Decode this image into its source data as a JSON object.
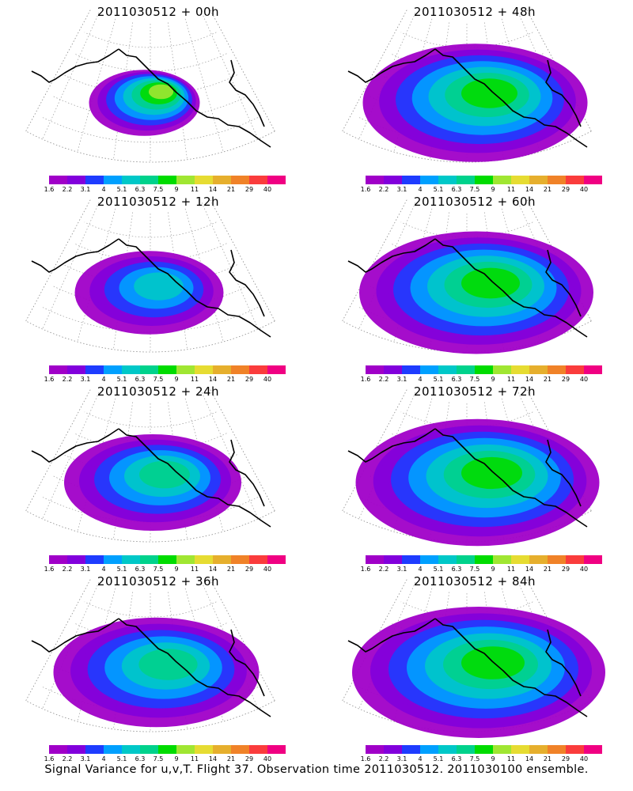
{
  "panels": [
    {
      "title": "2011030512 + 00h",
      "spread": 0.25,
      "max_level": 7
    },
    {
      "title": "2011030512 + 48h",
      "spread": 0.85,
      "max_level": 6
    },
    {
      "title": "2011030512 + 12h",
      "spread": 0.45,
      "max_level": 4
    },
    {
      "title": "2011030512 + 60h",
      "spread": 0.9,
      "max_level": 6
    },
    {
      "title": "2011030512 + 24h",
      "spread": 0.6,
      "max_level": 5
    },
    {
      "title": "2011030512 + 72h",
      "spread": 0.95,
      "max_level": 6
    },
    {
      "title": "2011030512 + 36h",
      "spread": 0.75,
      "max_level": 5
    },
    {
      "title": "2011030512 + 84h",
      "spread": 1.0,
      "max_level": 6
    }
  ],
  "colorbar": {
    "labels": [
      "1.6",
      "2.2",
      "3.1",
      "4",
      "5.1",
      "6.3",
      "7.5",
      "9",
      "11",
      "14",
      "21",
      "29",
      "40"
    ],
    "colors": [
      "#a000c8",
      "#8200dc",
      "#1e3cff",
      "#00a0ff",
      "#00c8c8",
      "#00d28c",
      "#00dc00",
      "#a0e632",
      "#e6dc32",
      "#e6af2d",
      "#f08228",
      "#fa3c3c",
      "#f00082"
    ]
  },
  "caption": "Signal Variance for u,v,T. Flight 37. Observation time 2011030512. 2011030100 ensemble."
}
